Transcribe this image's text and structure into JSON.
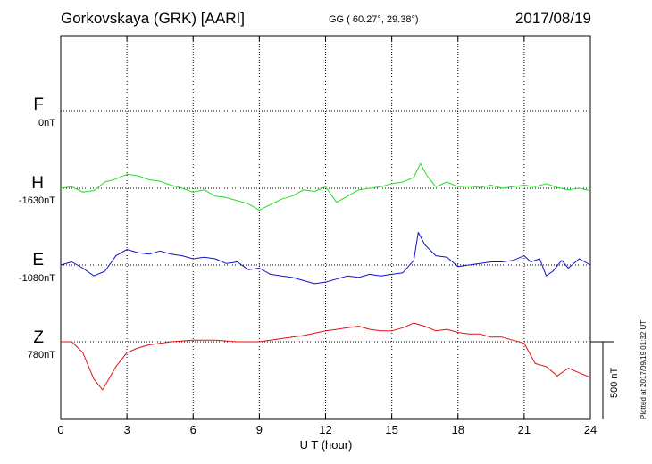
{
  "header": {
    "station": "Gorkovskaya (GRK)  [AARI]",
    "coords": "GG ( 60.27°,  29.38°)",
    "date": "2017/08/19"
  },
  "footer": {
    "xlabel": "U T (hour)",
    "plotted": "Plotted at 2017/09/19 01:32 UT"
  },
  "chart_data": {
    "type": "line",
    "xlabel": "U T (hour)",
    "xlim": [
      0,
      24
    ],
    "xticks": [
      "0",
      "3",
      "6",
      "9",
      "12",
      "15",
      "18",
      "21",
      "24"
    ],
    "grid": true,
    "scale_bar": {
      "value": 500,
      "label": "500 nT"
    },
    "series": [
      {
        "name": "F",
        "baseline_label": "0nT",
        "color": "#f4a300",
        "x": [],
        "y": []
      },
      {
        "name": "H",
        "baseline_label": "-1630nT",
        "color": "#22dd22",
        "x": [
          0,
          0.5,
          1.0,
          1.5,
          2.0,
          2.5,
          3.0,
          3.5,
          4.0,
          4.5,
          5.0,
          5.5,
          6.0,
          6.5,
          7.0,
          7.5,
          8.0,
          8.5,
          9.0,
          9.5,
          10.0,
          10.5,
          11.0,
          11.5,
          12.0,
          12.5,
          13.0,
          13.5,
          14.0,
          14.5,
          15.0,
          15.5,
          16.0,
          16.3,
          16.6,
          17.0,
          17.5,
          18.0,
          18.5,
          19.0,
          19.5,
          20.0,
          20.5,
          21.0,
          21.5,
          22.0,
          22.5,
          23.0,
          23.5,
          24.0
        ],
        "y": [
          -1630,
          -1620,
          -1655,
          -1645,
          -1590,
          -1570,
          -1540,
          -1550,
          -1575,
          -1585,
          -1610,
          -1630,
          -1655,
          -1640,
          -1680,
          -1690,
          -1710,
          -1730,
          -1770,
          -1735,
          -1700,
          -1680,
          -1640,
          -1650,
          -1620,
          -1720,
          -1680,
          -1640,
          -1630,
          -1620,
          -1600,
          -1590,
          -1560,
          -1470,
          -1550,
          -1620,
          -1590,
          -1620,
          -1615,
          -1625,
          -1610,
          -1630,
          -1620,
          -1610,
          -1620,
          -1600,
          -1625,
          -1640,
          -1630,
          -1645
        ]
      },
      {
        "name": "E",
        "baseline_label": "-1080nT",
        "color": "#1111cc",
        "x": [
          0,
          0.5,
          1.0,
          1.5,
          2.0,
          2.5,
          3.0,
          3.5,
          4.0,
          4.5,
          5.0,
          5.5,
          6.0,
          6.5,
          7.0,
          7.5,
          8.0,
          8.5,
          9.0,
          9.5,
          10.0,
          10.5,
          11.0,
          11.5,
          12.0,
          12.5,
          13.0,
          13.5,
          14.0,
          14.5,
          15.0,
          15.5,
          16.0,
          16.2,
          16.5,
          17.0,
          17.5,
          18.0,
          18.5,
          19.0,
          19.5,
          20.0,
          20.5,
          21.0,
          21.3,
          21.7,
          22.0,
          22.3,
          22.7,
          23.0,
          23.5,
          24.0
        ],
        "y": [
          -1080,
          -1060,
          -1100,
          -1150,
          -1120,
          -1020,
          -980,
          -1000,
          -1010,
          -990,
          -1010,
          -1020,
          -1040,
          -1030,
          -1040,
          -1070,
          -1060,
          -1110,
          -1100,
          -1140,
          -1150,
          -1160,
          -1180,
          -1200,
          -1190,
          -1170,
          -1150,
          -1160,
          -1140,
          -1150,
          -1140,
          -1130,
          -1050,
          -870,
          -950,
          -1020,
          -1030,
          -1090,
          -1080,
          -1070,
          -1060,
          -1060,
          -1050,
          -1020,
          -1060,
          -1040,
          -1150,
          -1120,
          -1050,
          -1100,
          -1040,
          -1080
        ]
      },
      {
        "name": "Z",
        "baseline_label": "780nT",
        "color": "#e01010",
        "x": [
          0,
          0.5,
          1.0,
          1.5,
          1.9,
          2.5,
          3.0,
          3.5,
          4.0,
          5.0,
          6.0,
          7.0,
          8.0,
          9.0,
          10.0,
          11.0,
          12.0,
          12.5,
          13.0,
          13.5,
          14.0,
          14.5,
          15.0,
          15.5,
          16.0,
          16.5,
          17.0,
          17.5,
          18.0,
          18.5,
          19.0,
          19.5,
          20.0,
          20.5,
          21.0,
          21.5,
          22.0,
          22.5,
          23.0,
          23.5,
          24.0
        ],
        "y": [
          780,
          780,
          710,
          540,
          470,
          620,
          710,
          740,
          760,
          780,
          790,
          790,
          780,
          780,
          800,
          820,
          850,
          860,
          870,
          880,
          860,
          850,
          850,
          870,
          900,
          880,
          850,
          860,
          840,
          830,
          830,
          810,
          810,
          790,
          770,
          640,
          620,
          560,
          610,
          580,
          550
        ]
      }
    ]
  }
}
